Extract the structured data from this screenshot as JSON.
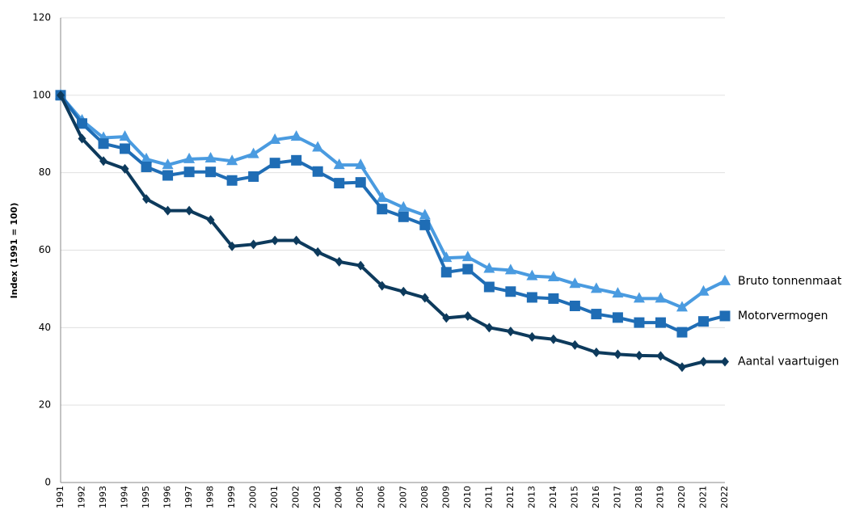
{
  "chart_data": {
    "type": "line",
    "y_label": "Index (1991 = 100)",
    "categories": [
      "1991",
      "1992",
      "1993",
      "1994",
      "1995",
      "1996",
      "1997",
      "1998",
      "1999",
      "2000",
      "2001",
      "2002",
      "2003",
      "2004",
      "2005",
      "2006",
      "2007",
      "2008",
      "2009",
      "2010",
      "2011",
      "2012",
      "2013",
      "2014",
      "2015",
      "2016",
      "2017",
      "2018",
      "2019",
      "2020",
      "2021",
      "2022"
    ],
    "series": [
      {
        "name": "Bruto tonnenmaat",
        "color": "#4a9be0",
        "marker": "triangle",
        "values": [
          100,
          93.5,
          89,
          89.3,
          83.5,
          82,
          83.5,
          83.7,
          83,
          84.8,
          88.5,
          89.3,
          86.5,
          82,
          82,
          73.5,
          71,
          69,
          58,
          58.2,
          55.2,
          54.8,
          53.3,
          53,
          51.3,
          50,
          48.8,
          47.5,
          47.5,
          45.2,
          49.3,
          52
        ]
      },
      {
        "name": "Motorvermogen",
        "color": "#1f6db5",
        "marker": "square",
        "values": [
          100,
          92.7,
          87.5,
          86.2,
          81.5,
          79.3,
          80.2,
          80.2,
          78,
          79,
          82.5,
          83.2,
          80.3,
          77.3,
          77.5,
          70.6,
          68.6,
          66.5,
          54.3,
          55.1,
          50.5,
          49.3,
          47.8,
          47.5,
          45.6,
          43.5,
          42.6,
          41.3,
          41.3,
          38.8,
          41.6,
          43
        ]
      },
      {
        "name": "Aantal vaartuigen",
        "color": "#0d3a5c",
        "marker": "diamond",
        "values": [
          100,
          88.8,
          83,
          81,
          73.2,
          70.2,
          70.2,
          67.8,
          61,
          61.5,
          62.5,
          62.5,
          59.5,
          57,
          56,
          50.8,
          49.3,
          47.7,
          42.5,
          43,
          40,
          39,
          37.6,
          37,
          35.5,
          33.6,
          33.1,
          32.8,
          32.7,
          29.8,
          31.2,
          31.2
        ]
      }
    ],
    "ylim": [
      0,
      120
    ],
    "yticks": [
      0,
      20,
      40,
      60,
      80,
      100,
      120
    ],
    "grid": true
  }
}
